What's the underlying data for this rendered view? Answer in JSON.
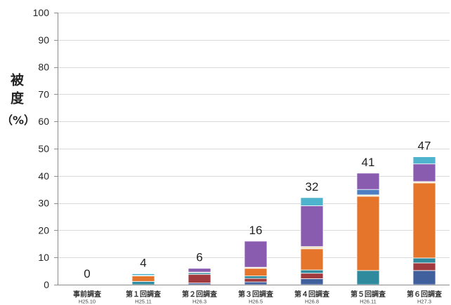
{
  "chart_data": {
    "type": "bar",
    "stacked": true,
    "categories": [
      "事前調査",
      "第１回調査",
      "第２回調査",
      "第３回調査",
      "第４回調査",
      "第５回調査",
      "第６回調査"
    ],
    "category_sublabels": [
      "H25.10",
      "H25.11",
      "H26.3",
      "H26.5",
      "H26.8",
      "H26.11",
      "H27.3"
    ],
    "series": [
      {
        "color": "#3f5f9d",
        "values": [
          0,
          0,
          0.6,
          1.0,
          2.2,
          0,
          5.2
        ]
      },
      {
        "color": "#a03a3e",
        "values": [
          0,
          0,
          3.2,
          1.3,
          2.0,
          0,
          2.8
        ]
      },
      {
        "color": "#2f8a9e",
        "values": [
          0,
          1.2,
          0.6,
          0.9,
          1.2,
          5.2,
          1.8
        ]
      },
      {
        "color": "#e6752c",
        "values": [
          0,
          2.0,
          0,
          2.8,
          7.8,
          27.3,
          27.6
        ]
      },
      {
        "color": "#efe4c2",
        "values": [
          0,
          0.2,
          0.2,
          0.4,
          0.8,
          0.5,
          0.5
        ]
      },
      {
        "color": "#4e7fc2",
        "values": [
          0,
          0,
          0,
          0,
          0,
          2.0,
          0
        ]
      },
      {
        "color": "#8a5cb0",
        "values": [
          0,
          0,
          1.4,
          9.6,
          15.0,
          6.0,
          6.5
        ]
      },
      {
        "color": "#4eb3cc",
        "values": [
          0,
          0.6,
          0,
          0,
          3.0,
          0,
          2.6
        ]
      }
    ],
    "data_labels": [
      0,
      4,
      6,
      16,
      32,
      41,
      47
    ],
    "ylabel": "被度",
    "yunit": "（%）",
    "ylim": [
      0,
      100
    ],
    "yticks": [
      0,
      10,
      20,
      30,
      40,
      50,
      60,
      70,
      80,
      90,
      100
    ],
    "grid": true
  }
}
